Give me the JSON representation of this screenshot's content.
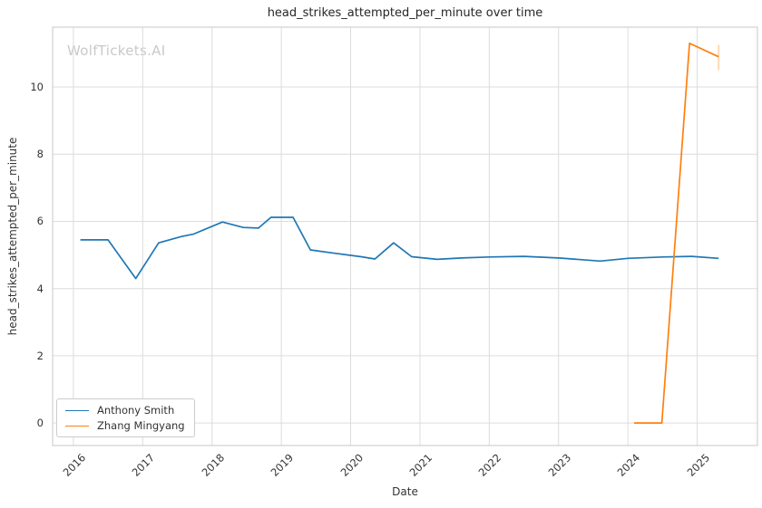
{
  "title": "head_strikes_attempted_per_minute over time",
  "watermark": "WolfTickets.AI",
  "xlabel": "Date",
  "ylabel": "head_strikes_attempted_per_minute",
  "legend": {
    "position": "lower left",
    "items": [
      {
        "label": "Anthony Smith",
        "color": "#1f77b4"
      },
      {
        "label": "Zhang Mingyang",
        "color": "#ff7f0e"
      }
    ]
  },
  "colors": {
    "series_blue": "#1f77b4",
    "series_orange": "#ff7f0e",
    "grid": "#dcdcdc",
    "spine": "#d0d0d0",
    "tick_text": "#333333",
    "watermark": "#c9c9c9"
  },
  "chart_data": {
    "type": "line",
    "title": "head_strikes_attempted_per_minute over time",
    "xlabel": "Date",
    "ylabel": "head_strikes_attempted_per_minute",
    "grid": true,
    "legend_position": "lower left",
    "x_ticks": [
      2016,
      2017,
      2018,
      2019,
      2020,
      2021,
      2022,
      2023,
      2024,
      2025
    ],
    "y_ticks": [
      0,
      2,
      4,
      6,
      8,
      10
    ],
    "x_range": [
      2015.7,
      2025.87
    ],
    "y_range": [
      -0.67,
      11.78
    ],
    "series": [
      {
        "name": "Anthony Smith",
        "color": "#1f77b4",
        "x": [
          2016.1,
          2016.5,
          2016.9,
          2017.23,
          2017.56,
          2017.73,
          2018.15,
          2018.45,
          2018.67,
          2018.85,
          2019.17,
          2019.42,
          2019.77,
          2020.15,
          2020.35,
          2020.62,
          2020.88,
          2021.25,
          2021.6,
          2022.0,
          2022.5,
          2023.0,
          2023.6,
          2024.0,
          2024.5,
          2024.92,
          2025.31
        ],
        "y": [
          5.45,
          5.45,
          4.3,
          5.36,
          5.55,
          5.62,
          5.98,
          5.82,
          5.8,
          6.12,
          6.12,
          5.15,
          5.05,
          4.95,
          4.88,
          5.36,
          4.95,
          4.87,
          4.91,
          4.94,
          4.96,
          4.91,
          4.82,
          4.9,
          4.94,
          4.96,
          4.9
        ]
      },
      {
        "name": "Zhang Mingyang",
        "color": "#ff7f0e",
        "x": [
          2024.09,
          2024.49,
          2024.89,
          2025.31
        ],
        "y": [
          0.0,
          0.0,
          11.3,
          10.9
        ],
        "error_bar_last": {
          "low": 10.5,
          "high": 11.25
        }
      }
    ]
  }
}
